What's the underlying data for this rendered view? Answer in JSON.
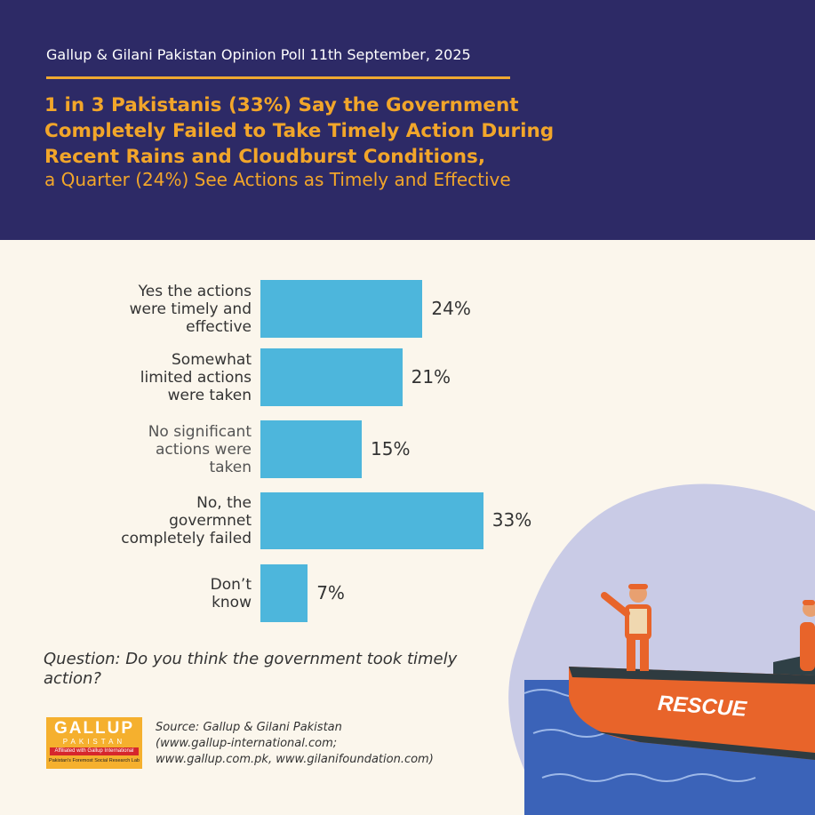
{
  "header": {
    "poll_line": "Gallup & Gilani Pakistan Opinion Poll 11th September, 2025",
    "headline_1": "1 in 3 Pakistanis (33%) Say the Government",
    "headline_2": "Completely Failed to Take Timely Action During",
    "headline_3": "Recent Rains and Cloudburst Conditions,",
    "subhead": "a Quarter (24%) See Actions as Timely and Effective"
  },
  "colors": {
    "header_bg": "#2d2a66",
    "accent": "#f2a62a",
    "bar": "#4db6dc",
    "page_bg": "#fbf6ec"
  },
  "chart_data": {
    "type": "bar",
    "orientation": "horizontal",
    "categories": [
      [
        "Yes the actions",
        "were timely and",
        "effective"
      ],
      [
        "Somewhat",
        "limited actions",
        "were taken"
      ],
      [
        "No significant",
        "actions were",
        "taken"
      ],
      [
        "No, the",
        "govermnet",
        "completely failed"
      ],
      [
        "Don’t",
        "know"
      ]
    ],
    "values": [
      24,
      21,
      15,
      33,
      7
    ],
    "value_labels": [
      "24%",
      "21%",
      "15%",
      "33%",
      "7%"
    ],
    "unit": "%",
    "xlim": [
      0,
      50
    ]
  },
  "question": "Question: Do you think the government took timely action?",
  "source": {
    "line1": "Source: Gallup & Gilani Pakistan",
    "line2": "(www.gallup-international.com;",
    "line3": "www.gallup.com.pk, www.gilanifoundation.com)"
  },
  "logo": {
    "main": "GALLUP",
    "sub": "PAKISTAN",
    "band": "Affiliated with Gallup International",
    "foot": "Pakistan's Foremost Social Research Lab"
  },
  "illustration": {
    "boat_text": "RESCUE"
  }
}
